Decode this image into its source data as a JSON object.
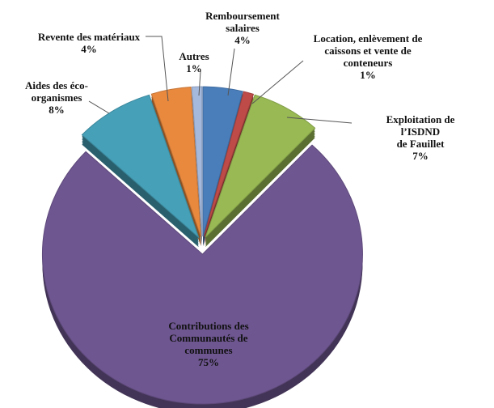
{
  "chart_data": {
    "type": "pie",
    "categories": [
      "Remboursement\nsalaires",
      "Location, enlèvement de\ncaissons et vente de\nconteneurs",
      "Exploitation de l’ISDND\nde Fauillet",
      "Contributions des\nCommunautés de\ncommunes",
      "Aides des éco-\norganismes",
      "Revente des matériaux",
      "Autres"
    ],
    "values": [
      4,
      1,
      7,
      75,
      8,
      4,
      1
    ],
    "value_labels": [
      "4%",
      "1%",
      "7%",
      "75%",
      "8%",
      "4%",
      "1%"
    ],
    "colors": [
      "#4a7ebb",
      "#be4b48",
      "#98b954",
      "#6e5690",
      "#46a0b8",
      "#e8893e",
      "#a5b9dd"
    ]
  }
}
